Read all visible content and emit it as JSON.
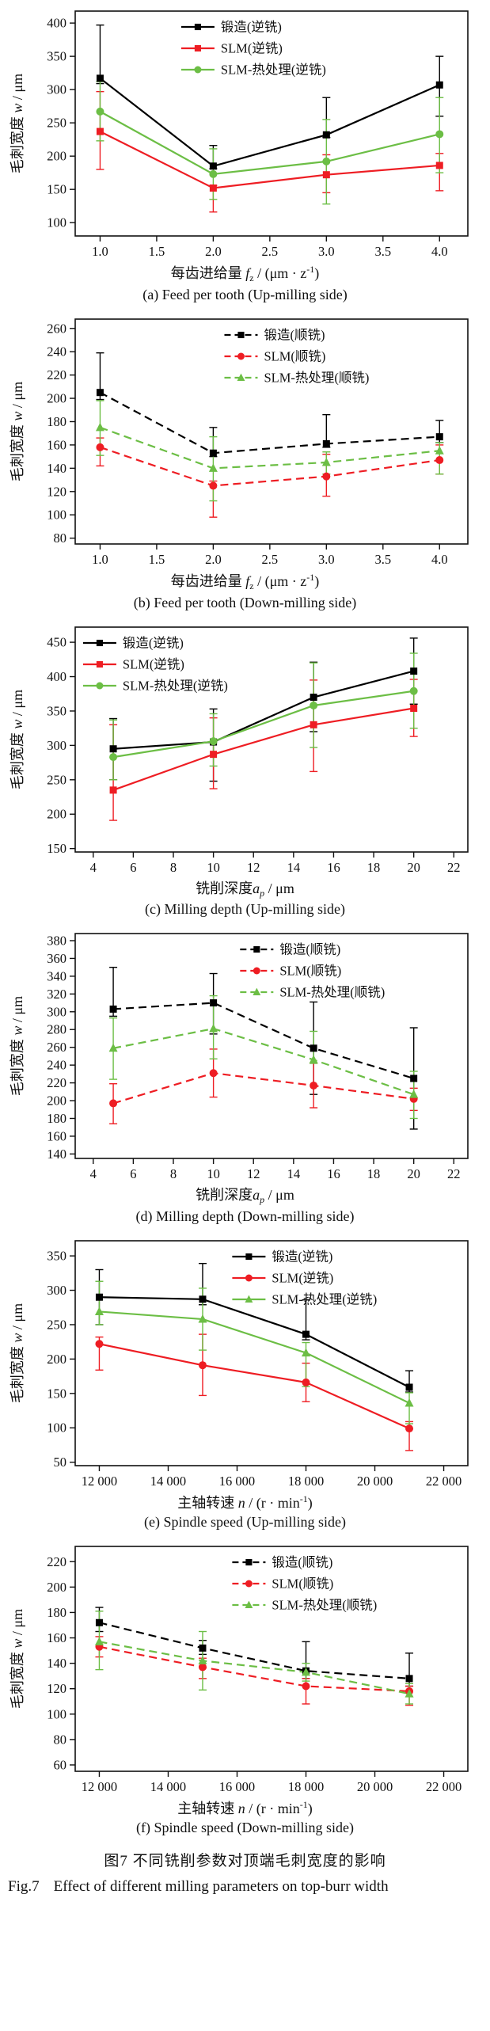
{
  "figure": {
    "caption_zh": "图7  不同铣削参数对顶端毛刺宽度的影响",
    "caption_en_prefix": "Fig.7",
    "caption_en": "Effect of different milling parameters on top-burr width"
  },
  "ylabel_segments": [
    {
      "t": "毛刺宽度 "
    },
    {
      "t": "w",
      "italic": true
    },
    {
      "t": " / μm"
    }
  ],
  "chart_data": [
    {
      "id": "a",
      "type": "line",
      "caption": "(a) Feed per tooth (Up-milling side)",
      "xlabel": [
        {
          "t": "每齿进给量 "
        },
        {
          "t": "f",
          "italic": true
        },
        {
          "t": "z",
          "sub": true
        },
        {
          "t": " / (μm · z"
        },
        {
          "t": "-1",
          "sup": true
        },
        {
          "t": ")"
        }
      ],
      "x": [
        1.0,
        2.0,
        3.0,
        4.0
      ],
      "x_tick_vals": [
        1.0,
        1.5,
        2.0,
        2.5,
        3.0,
        3.5,
        4.0
      ],
      "x_tick_labels": [
        "1.0",
        "1.5",
        "2.0",
        "2.5",
        "3.0",
        "3.5",
        "4.0"
      ],
      "xlim": [
        0.78,
        4.25
      ],
      "y_ticks": [
        100,
        150,
        200,
        250,
        300,
        350,
        400
      ],
      "ylim": [
        80,
        418
      ],
      "dashed": false,
      "legend_x": 0.27,
      "series": [
        {
          "name": "锻造(逆铣)",
          "color": "#000000",
          "marker": "square",
          "values": [
            317,
            185,
            232,
            307
          ],
          "eu": [
            80,
            31,
            56,
            43
          ],
          "ed": [
            8,
            4,
            4,
            47
          ]
        },
        {
          "name": "SLM(逆铣)",
          "color": "#ee1d23",
          "marker": "square",
          "values": [
            237,
            152,
            172,
            186
          ],
          "eu": [
            60,
            4,
            30,
            18
          ],
          "ed": [
            57,
            36,
            27,
            38
          ]
        },
        {
          "name": "SLM-热处理(逆铣)",
          "color": "#6cbe45",
          "marker": "circle",
          "values": [
            267,
            173,
            192,
            233
          ],
          "eu": [
            45,
            38,
            63,
            55
          ],
          "ed": [
            44,
            38,
            64,
            58
          ]
        }
      ]
    },
    {
      "id": "b",
      "type": "line",
      "caption": "(b) Feed per tooth (Down-milling side)",
      "xlabel": [
        {
          "t": "每齿进给量 "
        },
        {
          "t": "f",
          "italic": true
        },
        {
          "t": "z",
          "sub": true
        },
        {
          "t": " / (μm · z"
        },
        {
          "t": "-1",
          "sup": true
        },
        {
          "t": ")"
        }
      ],
      "x": [
        1.0,
        2.0,
        3.0,
        4.0
      ],
      "x_tick_vals": [
        1.0,
        1.5,
        2.0,
        2.5,
        3.0,
        3.5,
        4.0
      ],
      "x_tick_labels": [
        "1.0",
        "1.5",
        "2.0",
        "2.5",
        "3.0",
        "3.5",
        "4.0"
      ],
      "xlim": [
        0.78,
        4.25
      ],
      "y_ticks": [
        80,
        100,
        120,
        140,
        160,
        180,
        200,
        220,
        240,
        260
      ],
      "ylim": [
        75,
        268
      ],
      "dashed": true,
      "legend_x": 0.38,
      "series": [
        {
          "name": "锻造(顺铣)",
          "color": "#000000",
          "marker": "square",
          "values": [
            205,
            153,
            161,
            167
          ],
          "eu": [
            34,
            22,
            25,
            14
          ],
          "ed": [
            6,
            3,
            3,
            5
          ]
        },
        {
          "name": "SLM(顺铣)",
          "color": "#ee1d23",
          "marker": "circle",
          "values": [
            158,
            125,
            133,
            147
          ],
          "eu": [
            8,
            4,
            19,
            13
          ],
          "ed": [
            16,
            27,
            17,
            12
          ]
        },
        {
          "name": "SLM-热处理(顺铣)",
          "color": "#6cbe45",
          "marker": "triangle",
          "values": [
            175,
            140,
            145,
            155
          ],
          "eu": [
            23,
            27,
            9,
            7
          ],
          "ed": [
            24,
            28,
            10,
            20
          ]
        }
      ]
    },
    {
      "id": "c",
      "type": "line",
      "caption": "(c) Milling depth (Up-milling side)",
      "xlabel": [
        {
          "t": "铣削深度"
        },
        {
          "t": "a",
          "italic": true
        },
        {
          "t": "p",
          "sub": true,
          "italic": true
        },
        {
          "t": " / μm"
        }
      ],
      "x": [
        5,
        10,
        15,
        20
      ],
      "x_tick_vals": [
        4,
        6,
        8,
        10,
        12,
        14,
        16,
        18,
        20,
        22
      ],
      "x_tick_labels": [
        "4",
        "6",
        "8",
        "10",
        "12",
        "14",
        "16",
        "18",
        "20",
        "22"
      ],
      "xlim": [
        3.1,
        22.7
      ],
      "y_ticks": [
        150,
        200,
        250,
        300,
        350,
        400,
        450
      ],
      "ylim": [
        145,
        472
      ],
      "dashed": false,
      "legend_x": 0.02,
      "series": [
        {
          "name": "锻造(逆铣)",
          "color": "#000000",
          "marker": "square",
          "values": [
            295,
            305,
            370,
            408
          ],
          "eu": [
            44,
            48,
            51,
            48
          ],
          "ed": [
            45,
            57,
            50,
            48
          ]
        },
        {
          "name": "SLM(逆铣)",
          "color": "#ee1d23",
          "marker": "square",
          "values": [
            235,
            287,
            330,
            354
          ],
          "eu": [
            95,
            53,
            65,
            42
          ],
          "ed": [
            44,
            50,
            68,
            41
          ]
        },
        {
          "name": "SLM-热处理(逆铣)",
          "color": "#6cbe45",
          "marker": "circle",
          "values": [
            283,
            306,
            358,
            379
          ],
          "eu": [
            54,
            40,
            62,
            55
          ],
          "ed": [
            33,
            36,
            61,
            54
          ]
        }
      ]
    },
    {
      "id": "d",
      "type": "line",
      "caption": "(d) Milling depth (Down-milling side)",
      "xlabel": [
        {
          "t": "铣削深度"
        },
        {
          "t": "a",
          "italic": true
        },
        {
          "t": "p",
          "sub": true,
          "italic": true
        },
        {
          "t": " / μm"
        }
      ],
      "x": [
        5,
        10,
        15,
        20
      ],
      "x_tick_vals": [
        4,
        6,
        8,
        10,
        12,
        14,
        16,
        18,
        20,
        22
      ],
      "x_tick_labels": [
        "4",
        "6",
        "8",
        "10",
        "12",
        "14",
        "16",
        "18",
        "20",
        "22"
      ],
      "xlim": [
        3.1,
        22.7
      ],
      "y_ticks": [
        140,
        160,
        180,
        200,
        220,
        240,
        260,
        280,
        300,
        320,
        340,
        360,
        380
      ],
      "ylim": [
        135,
        388
      ],
      "dashed": true,
      "legend_x": 0.42,
      "series": [
        {
          "name": "锻造(顺铣)",
          "color": "#000000",
          "marker": "square",
          "values": [
            303,
            310,
            259,
            225
          ],
          "eu": [
            47,
            33,
            52,
            57
          ],
          "ed": [
            8,
            35,
            52,
            57
          ]
        },
        {
          "name": "SLM(顺铣)",
          "color": "#ee1d23",
          "marker": "circle",
          "values": [
            197,
            231,
            217,
            202
          ],
          "eu": [
            22,
            27,
            25,
            12
          ],
          "ed": [
            23,
            27,
            25,
            13
          ]
        },
        {
          "name": "SLM-热处理(顺铣)",
          "color": "#6cbe45",
          "marker": "triangle",
          "values": [
            259,
            281,
            246,
            207
          ],
          "eu": [
            34,
            37,
            32,
            26
          ],
          "ed": [
            35,
            34,
            4,
            27
          ]
        }
      ]
    },
    {
      "id": "e",
      "type": "line",
      "caption": "(e) Spindle speed (Up-milling side)",
      "xlabel": [
        {
          "t": "主轴转速 "
        },
        {
          "t": "n",
          "italic": true
        },
        {
          "t": " / (r · min"
        },
        {
          "t": "-1",
          "sup": true
        },
        {
          "t": ")"
        }
      ],
      "x": [
        12000,
        15000,
        18000,
        21000
      ],
      "x_tick_vals": [
        12000,
        14000,
        16000,
        18000,
        20000,
        22000
      ],
      "x_tick_labels": [
        "12 000",
        "14 000",
        "16 000",
        "18 000",
        "20 000",
        "22 000"
      ],
      "xlim": [
        11300,
        22700
      ],
      "y_ticks": [
        50,
        100,
        150,
        200,
        250,
        300,
        350
      ],
      "ylim": [
        45,
        372
      ],
      "dashed": false,
      "legend_x": 0.4,
      "series": [
        {
          "name": "锻造(逆铣)",
          "color": "#000000",
          "marker": "square",
          "values": [
            290,
            287,
            236,
            159
          ],
          "eu": [
            40,
            52,
            50,
            24
          ],
          "ed": [
            40,
            8,
            8,
            7
          ]
        },
        {
          "name": "SLM(逆铣)",
          "color": "#ee1d23",
          "marker": "circle",
          "values": [
            222,
            191,
            166,
            99
          ],
          "eu": [
            10,
            45,
            28,
            10
          ],
          "ed": [
            38,
            44,
            28,
            32
          ]
        },
        {
          "name": "SLM-热处理(逆铣)",
          "color": "#6cbe45",
          "marker": "triangle",
          "values": [
            269,
            258,
            209,
            136
          ],
          "eu": [
            44,
            45,
            15,
            15
          ],
          "ed": [
            19,
            45,
            49,
            30
          ]
        }
      ]
    },
    {
      "id": "f",
      "type": "line",
      "caption": "(f) Spindle speed (Down-milling side)",
      "xlabel": [
        {
          "t": "主轴转速 "
        },
        {
          "t": "n",
          "italic": true
        },
        {
          "t": " / (r · min"
        },
        {
          "t": "-1",
          "sup": true
        },
        {
          "t": ")"
        }
      ],
      "x": [
        12000,
        15000,
        18000,
        21000
      ],
      "x_tick_vals": [
        12000,
        14000,
        16000,
        18000,
        20000,
        22000
      ],
      "x_tick_labels": [
        "12 000",
        "14 000",
        "16 000",
        "18 000",
        "20 000",
        "22 000"
      ],
      "xlim": [
        11300,
        22700
      ],
      "y_ticks": [
        60,
        80,
        100,
        120,
        140,
        160,
        180,
        200,
        220
      ],
      "ylim": [
        55,
        232
      ],
      "dashed": true,
      "legend_x": 0.4,
      "series": [
        {
          "name": "锻造(顺铣)",
          "color": "#000000",
          "marker": "square",
          "values": [
            172,
            152,
            134,
            128
          ],
          "eu": [
            12,
            6,
            23,
            20
          ],
          "ed": [
            7,
            5,
            6,
            6
          ]
        },
        {
          "name": "SLM(顺铣)",
          "color": "#ee1d23",
          "marker": "circle",
          "values": [
            153,
            137,
            122,
            118
          ],
          "eu": [
            8,
            7,
            6,
            4
          ],
          "ed": [
            8,
            9,
            14,
            11
          ]
        },
        {
          "name": "SLM-热处理(顺铣)",
          "color": "#6cbe45",
          "marker": "triangle",
          "values": [
            157,
            142,
            133,
            116
          ],
          "eu": [
            24,
            23,
            7,
            8
          ],
          "ed": [
            22,
            23,
            7,
            8
          ]
        }
      ]
    }
  ]
}
